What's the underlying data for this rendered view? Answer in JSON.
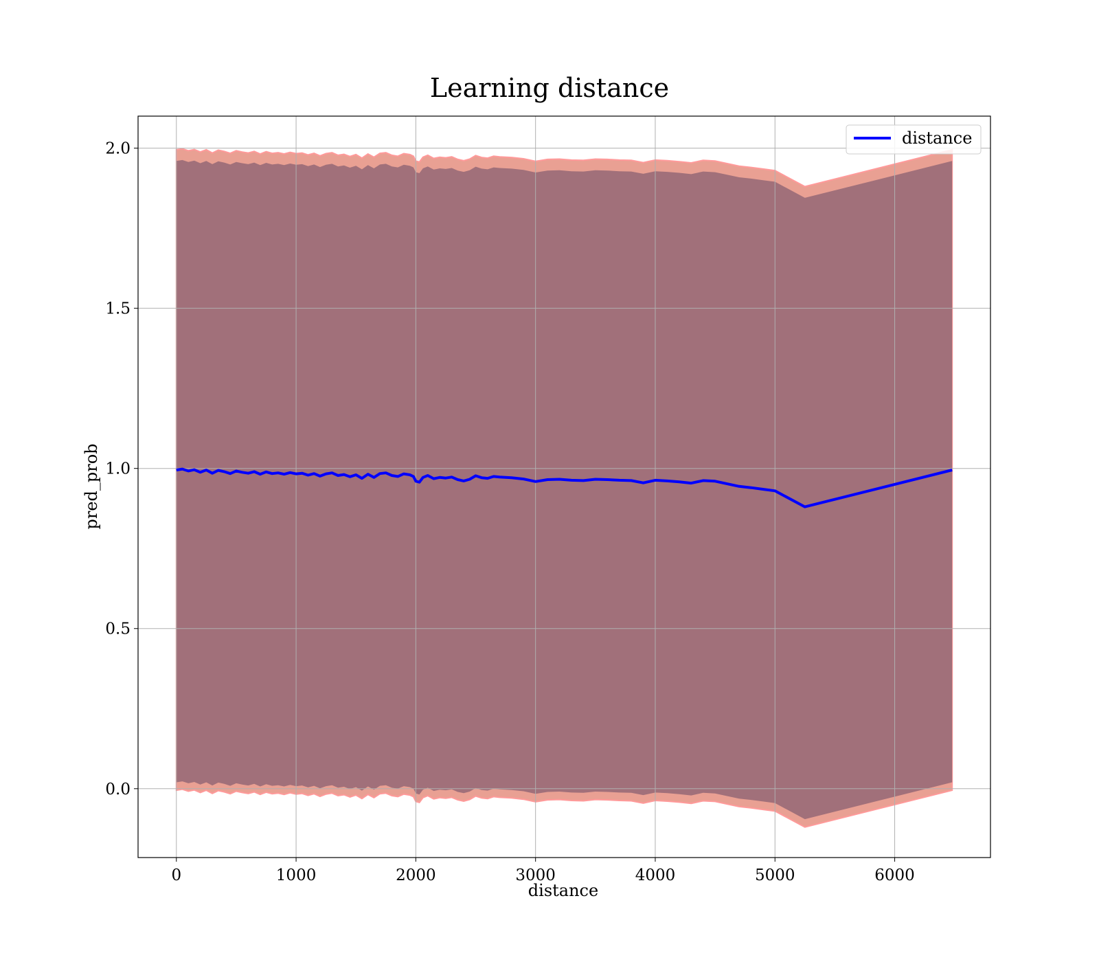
{
  "chart_data": {
    "type": "line",
    "title": "Learning distance",
    "xlabel": "distance",
    "ylabel": "pred_prob",
    "xlim": [
      -320,
      6800
    ],
    "ylim": [
      -0.215,
      2.1
    ],
    "xticks": [
      0,
      1000,
      2000,
      3000,
      4000,
      5000,
      6000
    ],
    "yticks": [
      0.0,
      0.5,
      1.0,
      1.5,
      2.0
    ],
    "xtick_labels": [
      "0",
      "1000",
      "2000",
      "3000",
      "4000",
      "5000",
      "6000"
    ],
    "ytick_labels": [
      "0.0",
      "0.5",
      "1.0",
      "1.5",
      "2.0"
    ],
    "grid": true,
    "legend": {
      "position": "top-right",
      "entries": [
        "distance"
      ]
    },
    "colors": {
      "line": "#0000ff",
      "band_outer_fill": "#e9a093",
      "band_outer_edge": "#ff9a9a",
      "band_inner_fill": "#a1707a",
      "grid": "#b0b0b0"
    },
    "series": [
      {
        "name": "distance",
        "x": [
          0,
          50,
          100,
          150,
          200,
          250,
          300,
          350,
          400,
          450,
          500,
          550,
          600,
          650,
          700,
          750,
          800,
          850,
          900,
          950,
          1000,
          1050,
          1100,
          1150,
          1200,
          1250,
          1300,
          1350,
          1400,
          1450,
          1500,
          1550,
          1600,
          1650,
          1700,
          1750,
          1800,
          1850,
          1900,
          1950,
          1980,
          2000,
          2030,
          2060,
          2100,
          2150,
          2200,
          2250,
          2300,
          2350,
          2400,
          2450,
          2500,
          2550,
          2600,
          2650,
          2700,
          2800,
          2900,
          3000,
          3100,
          3200,
          3300,
          3400,
          3500,
          3600,
          3700,
          3800,
          3900,
          4000,
          4100,
          4200,
          4300,
          4400,
          4500,
          4600,
          4700,
          4800,
          4900,
          5000,
          5250,
          6480
        ],
        "y": [
          0.995,
          0.998,
          0.992,
          0.996,
          0.988,
          0.995,
          0.985,
          0.994,
          0.99,
          0.984,
          0.992,
          0.988,
          0.985,
          0.99,
          0.982,
          0.989,
          0.984,
          0.986,
          0.982,
          0.987,
          0.983,
          0.985,
          0.979,
          0.984,
          0.976,
          0.983,
          0.986,
          0.978,
          0.981,
          0.974,
          0.98,
          0.969,
          0.982,
          0.972,
          0.984,
          0.986,
          0.978,
          0.975,
          0.983,
          0.98,
          0.975,
          0.96,
          0.957,
          0.972,
          0.978,
          0.968,
          0.972,
          0.97,
          0.973,
          0.965,
          0.961,
          0.966,
          0.977,
          0.971,
          0.969,
          0.975,
          0.973,
          0.971,
          0.967,
          0.959,
          0.965,
          0.966,
          0.963,
          0.962,
          0.966,
          0.965,
          0.963,
          0.962,
          0.955,
          0.963,
          0.961,
          0.958,
          0.954,
          0.962,
          0.96,
          0.952,
          0.944,
          0.94,
          0.935,
          0.93,
          0.88,
          0.995
        ],
        "band_outer": [
          0.0,
          2.0
        ],
        "band_inner": [
          0.025,
          1.965
        ]
      }
    ]
  }
}
